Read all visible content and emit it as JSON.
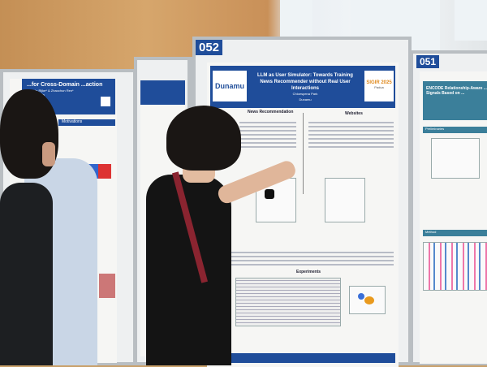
{
  "scene": {
    "description_colors": {
      "poster_blue": "#1f4d9a",
      "board_grey": "#b9bec2",
      "wood": "#c9a06a"
    }
  },
  "left_poster": {
    "title": "...for Cross-Domain ...action",
    "authors": "...en de Rijke* & Zhaochun Ren*",
    "affiliation": "...etherlands",
    "section": "Motivations"
  },
  "main_board": {
    "number": "052",
    "poster": {
      "logo": "Dunamu",
      "title": "LLM as User Simulator: Towards Training News Recommender without Real User Interactions",
      "author": "Chloespena Park",
      "affiliation": "Dunamu",
      "conference_logo": "SIGIR 2025",
      "conference_city": "Padua",
      "sections": [
        "News Recommendation",
        "Websites",
        "Experiments"
      ]
    }
  },
  "right_board": {
    "number": "051",
    "title": "ENCODE Relationship-Aware ... Signals Based on ...",
    "section_1": "Preliminaries",
    "section_2": "Method"
  }
}
